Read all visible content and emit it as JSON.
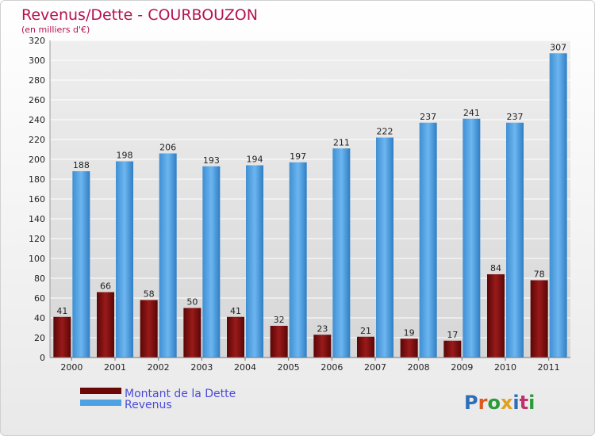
{
  "chart_data": {
    "type": "bar",
    "title": "Revenus/Dette - COURBOUZON",
    "subtitle": "(en milliers d'€)",
    "xlabel": "",
    "ylabel": "",
    "ylim": [
      0,
      320
    ],
    "yticks": [
      0,
      20,
      40,
      60,
      80,
      100,
      120,
      140,
      160,
      180,
      200,
      220,
      240,
      260,
      280,
      300,
      320
    ],
    "grid": true,
    "categories": [
      "2000",
      "2001",
      "2002",
      "2003",
      "2004",
      "2005",
      "2006",
      "2007",
      "2008",
      "2009",
      "2010",
      "2011"
    ],
    "series": [
      {
        "name": "Montant de la Dette",
        "color": "#7a0b0b",
        "values": [
          41,
          66,
          58,
          50,
          41,
          32,
          23,
          21,
          19,
          17,
          84,
          78
        ]
      },
      {
        "name": "Revenus",
        "color": "#4ea2e3",
        "values": [
          188,
          198,
          206,
          193,
          194,
          197,
          211,
          222,
          237,
          241,
          237,
          307
        ]
      }
    ],
    "legend": "bottom-left"
  },
  "brand": {
    "logo": "Proxiti"
  },
  "colors": {
    "title": "#b5124f",
    "legend_text": "#4b4bd8",
    "grid": "#ffffff",
    "axis_text": "#222222"
  }
}
